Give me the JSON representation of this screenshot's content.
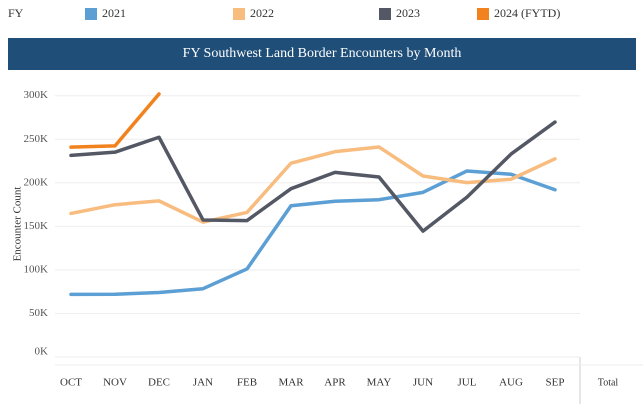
{
  "chart_data": {
    "type": "line",
    "title": "FY Southwest Land Border Encounters by Month",
    "legend_title": "FY",
    "y_label": "Encounter Count",
    "total_column": "Total",
    "categories": [
      "OCT",
      "NOV",
      "DEC",
      "JAN",
      "FEB",
      "MAR",
      "APR",
      "MAY",
      "JUN",
      "JUL",
      "AUG",
      "SEP"
    ],
    "series": [
      {
        "name": "2021",
        "color": "#5b9fd4",
        "values": [
          71929,
          72113,
          73994,
          78414,
          101099,
          173686,
          178795,
          180597,
          189034,
          213593,
          209840,
          192001
        ]
      },
      {
        "name": "2022",
        "color": "#f8bc7f",
        "values": [
          164837,
          174845,
          179253,
          154874,
          166010,
          222574,
          235785,
          241136,
          207834,
          200162,
          204087,
          227547
        ]
      },
      {
        "name": "2023",
        "color": "#545864",
        "values": [
          231529,
          235173,
          252315,
          157358,
          156630,
          193249,
          211992,
          206690,
          144556,
          183503,
          232972,
          269735
        ]
      },
      {
        "name": "2024 (FYTD)",
        "color": "#f2821e",
        "values": [
          240925,
          242399,
          301981,
          null,
          null,
          null,
          null,
          null,
          null,
          null,
          null,
          null
        ]
      }
    ],
    "ylim": [
      0,
      310000
    ],
    "yticks": [
      {
        "value": 0,
        "label": "0K"
      },
      {
        "value": 50000,
        "label": "50K"
      },
      {
        "value": 100000,
        "label": "100K"
      },
      {
        "value": 150000,
        "label": "150K"
      },
      {
        "value": 200000,
        "label": "200K"
      },
      {
        "value": 250000,
        "label": "250K"
      },
      {
        "value": 300000,
        "label": "300K"
      }
    ],
    "grid": true
  }
}
